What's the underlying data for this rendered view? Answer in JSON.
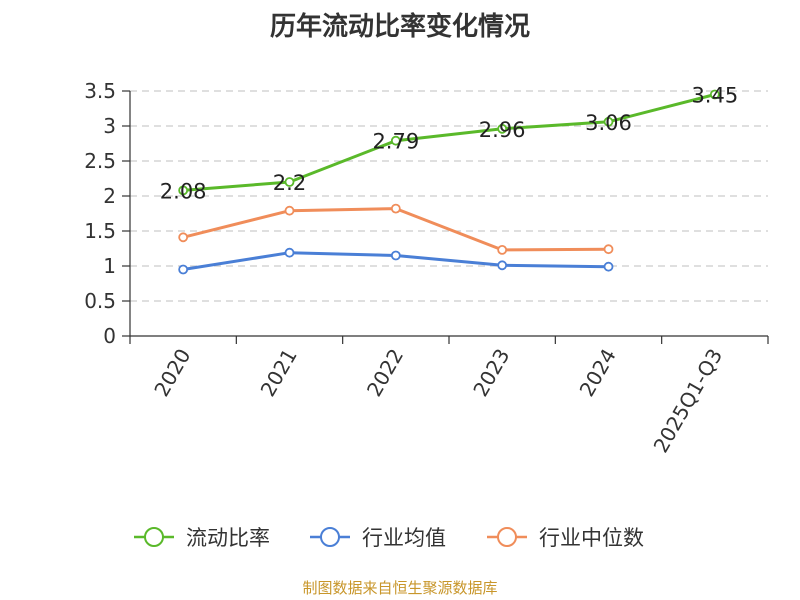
{
  "chart_data": {
    "type": "line",
    "title": "历年流动比率变化情况",
    "categories": [
      "2020",
      "2021",
      "2022",
      "2023",
      "2024",
      "2025Q1-Q3"
    ],
    "ylim": [
      0,
      3.5
    ],
    "yticks": [
      "0",
      "0.5",
      "1",
      "1.5",
      "2",
      "2.5",
      "3",
      "3.5"
    ],
    "grid": true,
    "legend_position": "bottom",
    "series": [
      {
        "name": "流动比率",
        "color": "#5ab92a",
        "values": [
          2.08,
          2.2,
          2.79,
          2.96,
          3.06,
          3.45
        ],
        "labels": [
          "2.08",
          "2.2",
          "2.79",
          "2.96",
          "3.06",
          "3.45"
        ]
      },
      {
        "name": "行业均值",
        "color": "#4a7fd6",
        "values": [
          0.95,
          1.19,
          1.15,
          1.01,
          0.99,
          null
        ]
      },
      {
        "name": "行业中位数",
        "color": "#f08d5a",
        "values": [
          1.41,
          1.79,
          1.82,
          1.23,
          1.24,
          null
        ]
      }
    ]
  },
  "source": "制图数据来自恒生聚源数据库"
}
